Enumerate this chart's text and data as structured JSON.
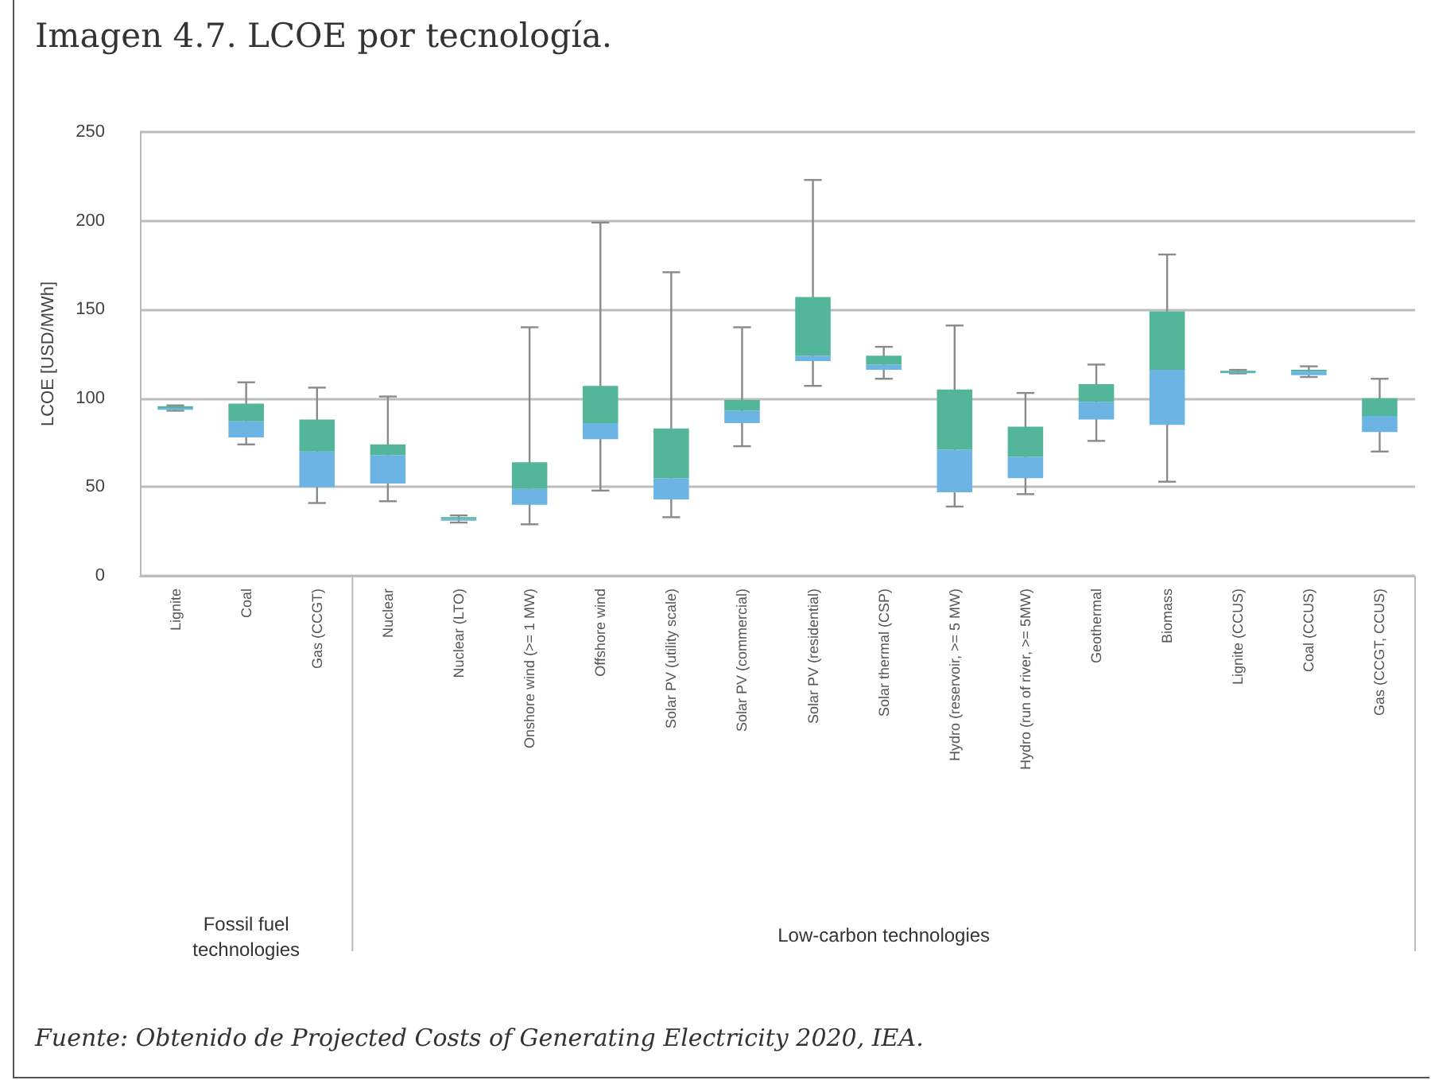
{
  "chart_data": {
    "type": "box",
    "title": "Imagen 4.7. LCOE por tecnología.",
    "ylabel": "LCOE [USD/MWh]",
    "categories": [
      "Lignite",
      "Coal",
      "Gas (CCGT)",
      "Nuclear",
      "Nuclear (LTO)",
      "Onshore wind (>= 1 MW)",
      "Offshore wind",
      "Solar PV (utility scale)",
      "Solar PV (commercial)",
      "Solar PV (residential)",
      "Solar thermal (CSP)",
      "Hydro (reservoir, >= 5 MW)",
      "Hydro (run of river, >= 5MW)",
      "Geothermal",
      "Biomass",
      "Lignite (CCUS)",
      "Coal (CCUS)",
      "Gas (CCGT, CCUS)"
    ],
    "colors": [
      [
        "#6cb4e4",
        "#53b59a"
      ],
      [
        "#6cb4e4",
        "#53b59a"
      ],
      [
        "#6cb4e4",
        "#53b59a"
      ],
      [
        "#6cb4e4",
        "#53b59a"
      ],
      [
        "#6cb4e4",
        "#53b59a"
      ],
      [
        "#6cb4e4",
        "#53b59a"
      ],
      [
        "#6cb4e4",
        "#53b59a"
      ],
      [
        "#6cb4e4",
        "#53b59a"
      ],
      [
        "#6cb4e4",
        "#53b59a"
      ],
      [
        "#6cb4e4",
        "#53b59a"
      ],
      [
        "#6cb4e4",
        "#53b59a"
      ],
      [
        "#6cb4e4",
        "#53b59a"
      ],
      [
        "#6cb4e4",
        "#53b59a"
      ],
      [
        "#6cb4e4",
        "#53b59a"
      ],
      [
        "#6cb4e4",
        "#53b59a"
      ],
      [
        "#6cb4e4",
        "#53b59a"
      ],
      [
        "#6cb4e4",
        "#53b59a"
      ],
      [
        "#6cb4e4",
        "#53b59a"
      ]
    ],
    "boxes": [
      {
        "low": 93,
        "q1": 93.5,
        "median": 94.5,
        "q3": 95.5,
        "high": 96
      },
      {
        "low": 74,
        "q1": 78,
        "median": 87,
        "q3": 97,
        "high": 109
      },
      {
        "low": 41,
        "q1": 50,
        "median": 70,
        "q3": 88,
        "high": 106
      },
      {
        "low": 42,
        "q1": 52,
        "median": 68,
        "q3": 74,
        "high": 101
      },
      {
        "low": 30,
        "q1": 31,
        "median": 32,
        "q3": 33,
        "high": 34
      },
      {
        "low": 29,
        "q1": 40,
        "median": 49,
        "q3": 64,
        "high": 140
      },
      {
        "low": 48,
        "q1": 77,
        "median": 86,
        "q3": 107,
        "high": 199
      },
      {
        "low": 33,
        "q1": 43,
        "median": 55,
        "q3": 83,
        "high": 171
      },
      {
        "low": 73,
        "q1": 86,
        "median": 93,
        "q3": 99,
        "high": 140
      },
      {
        "low": 107,
        "q1": 121,
        "median": 124,
        "q3": 157,
        "high": 223
      },
      {
        "low": 111,
        "q1": 116,
        "median": 119,
        "q3": 124,
        "high": 129
      },
      {
        "low": 39,
        "q1": 47,
        "median": 71,
        "q3": 105,
        "high": 141
      },
      {
        "low": 46,
        "q1": 55,
        "median": 67,
        "q3": 84,
        "high": 103
      },
      {
        "low": 76,
        "q1": 88,
        "median": 98,
        "q3": 108,
        "high": 119
      },
      {
        "low": 53,
        "q1": 85,
        "median": 116,
        "q3": 149,
        "high": 181
      },
      {
        "low": 114,
        "q1": 114.5,
        "median": 115,
        "q3": 115.5,
        "high": 116
      },
      {
        "low": 112,
        "q1": 113,
        "median": 115,
        "q3": 116,
        "high": 118
      },
      {
        "low": 70,
        "q1": 81,
        "median": 90,
        "q3": 100,
        "high": 111
      }
    ],
    "ylim": [
      0,
      250
    ],
    "yticks": [
      0,
      50,
      100,
      150,
      200,
      250
    ],
    "grid": "y",
    "annotations": [
      "Fossil fuel technologies",
      "Low-carbon technologies",
      "Fuente: Obtenido de Projected Costs of Generating Electricity 2020, IEA."
    ]
  }
}
